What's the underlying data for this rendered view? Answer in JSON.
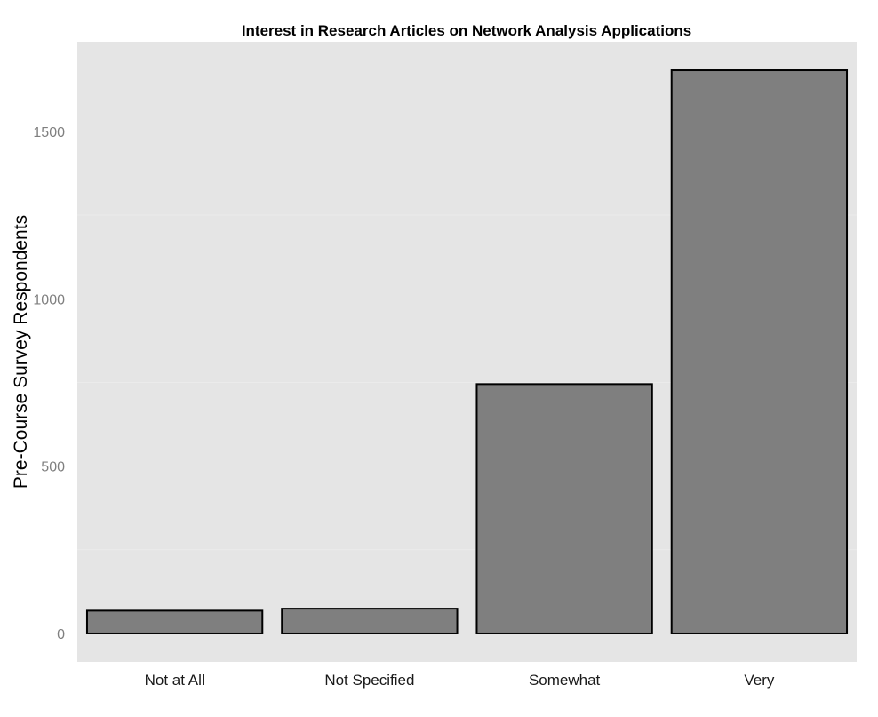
{
  "chart_data": {
    "type": "bar",
    "title": "Interest in Research Articles on Network Analysis Applications",
    "xlabel": "",
    "ylabel": "Pre-Course Survey Respondents",
    "categories": [
      "Not at All",
      "Not Specified",
      "Somewhat",
      "Very"
    ],
    "values": [
      68,
      74,
      745,
      1683
    ],
    "ylim": [
      -85,
      1768
    ],
    "yticks": [
      0,
      500,
      1000,
      1500
    ],
    "grid": true,
    "legend": "none"
  },
  "colors": {
    "panel_background": "#e5e5e5",
    "grid_line": "#ebebeb",
    "bar_fill": "#7f7f7f",
    "bar_stroke": "#000000"
  }
}
